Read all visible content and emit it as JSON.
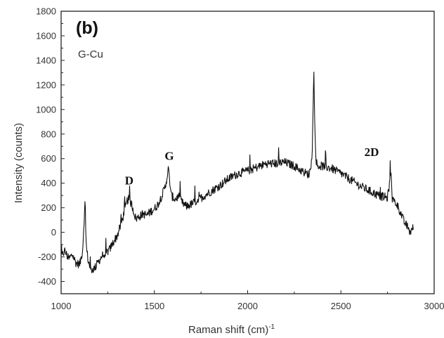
{
  "chart_data": {
    "type": "line",
    "panel_label": "(b)",
    "sample_label": "G-Cu",
    "xlabel": "Raman shift (cm)",
    "xlabel_superscript": "-1",
    "ylabel": "Intensity (counts)",
    "xlim": [
      1000,
      3000
    ],
    "ylim": [
      -500,
      1800
    ],
    "xticks": [
      1000,
      1500,
      2000,
      2500,
      3000
    ],
    "yticks": [
      -400,
      -200,
      0,
      200,
      400,
      600,
      800,
      1000,
      1200,
      1400,
      1600,
      1800
    ],
    "grid": false,
    "line_color": "#111111",
    "annotations": [
      {
        "text": "D",
        "x": 1365,
        "y": 390
      },
      {
        "text": "G",
        "x": 1580,
        "y": 590
      },
      {
        "text": "2D",
        "x": 2665,
        "y": 620
      }
    ],
    "series": [
      {
        "x": [
          1000,
          1020,
          1040,
          1060,
          1080,
          1100,
          1115,
          1125,
          1130,
          1135,
          1145,
          1160,
          1180,
          1200,
          1220,
          1240,
          1260,
          1280,
          1300,
          1320,
          1340,
          1355,
          1365,
          1380,
          1400,
          1420,
          1440,
          1460,
          1480,
          1500,
          1520,
          1540,
          1560,
          1575,
          1590,
          1610,
          1630,
          1650,
          1670,
          1700,
          1750,
          1800,
          1850,
          1900,
          1950,
          2000,
          2050,
          2100,
          2150,
          2200,
          2250,
          2300,
          2330,
          2345,
          2355,
          2360,
          2365,
          2375,
          2400,
          2450,
          2500,
          2550,
          2600,
          2650,
          2700,
          2750,
          2770,
          2775,
          2780,
          2800,
          2820,
          2840,
          2850,
          2860,
          2870,
          2880,
          2890
        ],
        "y": [
          -200,
          -150,
          -220,
          -180,
          -250,
          -260,
          -150,
          150,
          180,
          -120,
          -230,
          -310,
          -290,
          -240,
          -190,
          -170,
          -140,
          -80,
          -30,
          60,
          170,
          260,
          270,
          220,
          110,
          130,
          150,
          140,
          170,
          190,
          230,
          300,
          380,
          520,
          300,
          270,
          290,
          240,
          210,
          230,
          280,
          330,
          380,
          440,
          480,
          500,
          530,
          560,
          560,
          570,
          540,
          490,
          470,
          600,
          1300,
          900,
          600,
          540,
          540,
          520,
          480,
          430,
          380,
          340,
          300,
          280,
          500,
          270,
          260,
          230,
          160,
          80,
          60,
          40,
          0,
          20,
          40
        ]
      }
    ]
  }
}
